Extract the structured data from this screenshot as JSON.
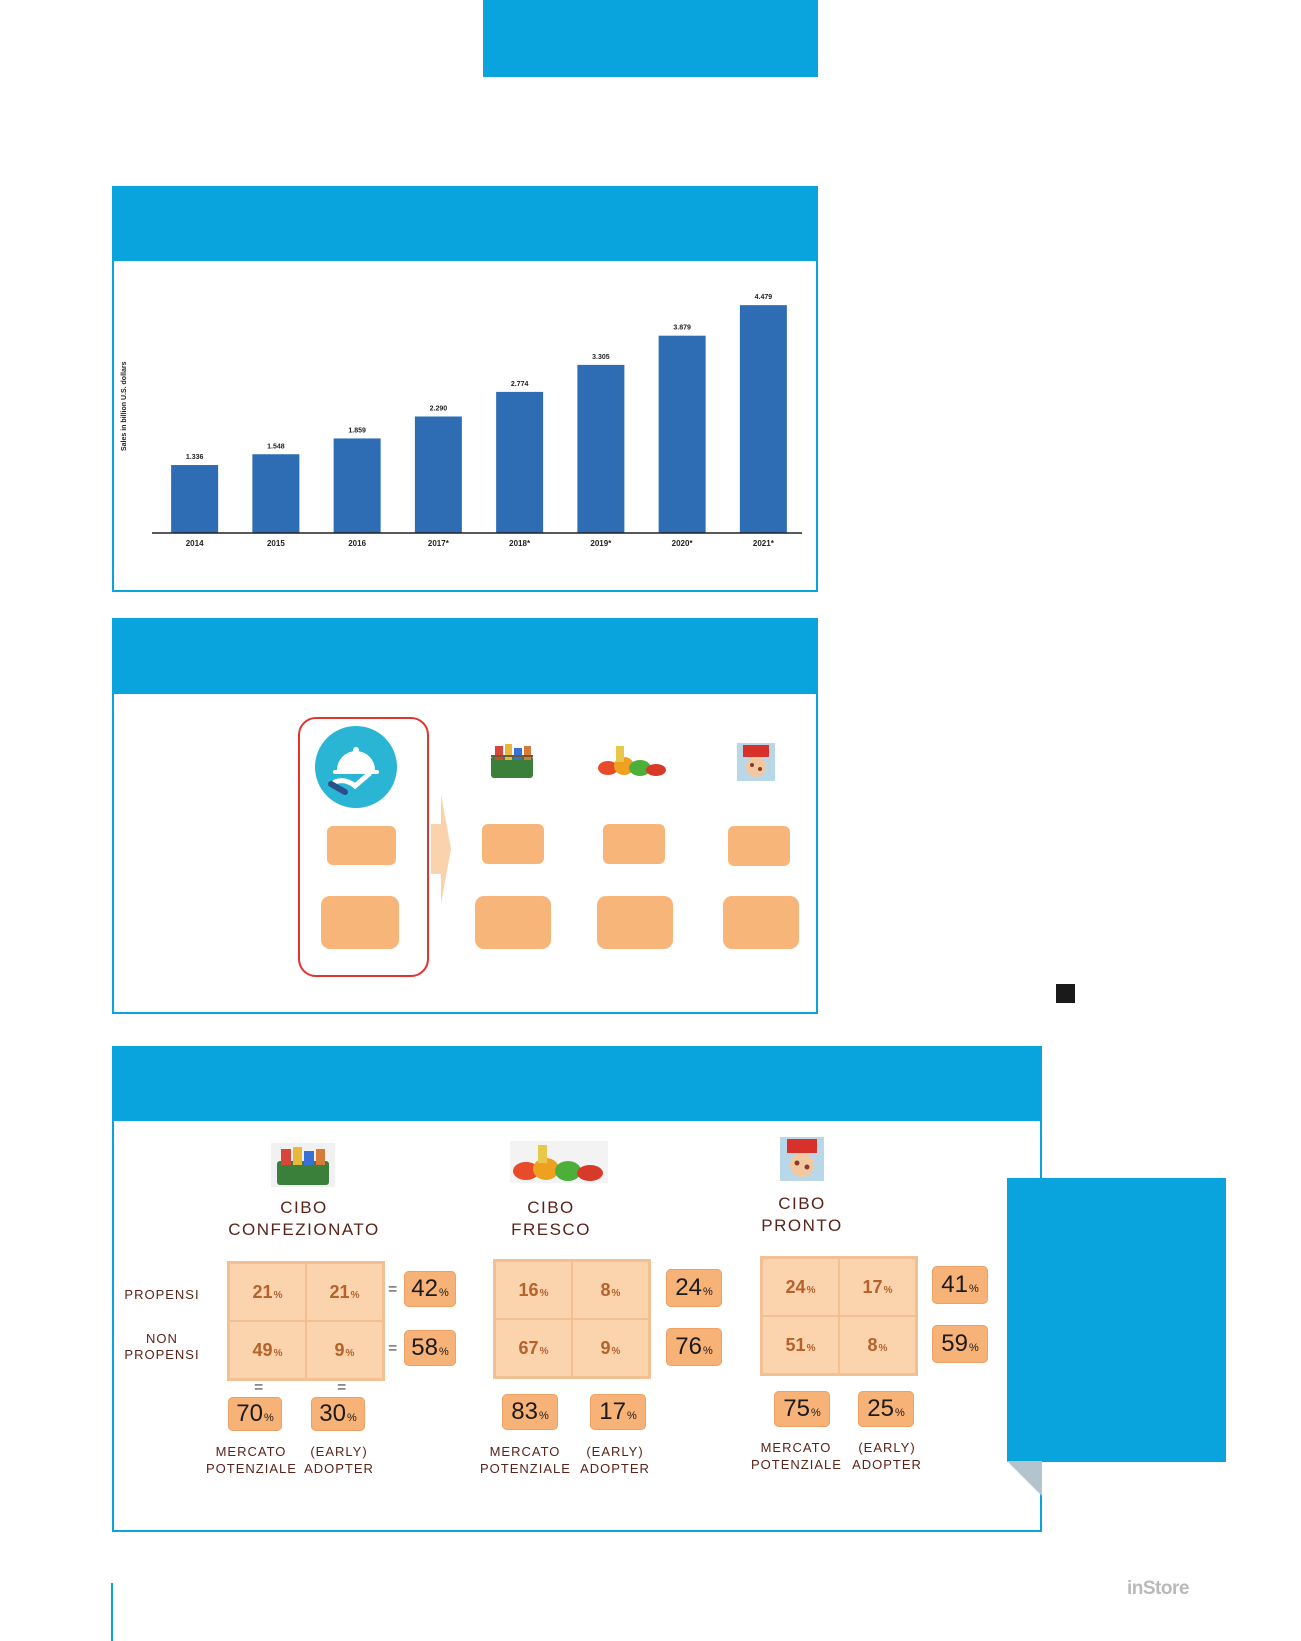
{
  "chart_data": {
    "type": "bar",
    "categories": [
      "2014",
      "2015",
      "2016",
      "2017*",
      "2018*",
      "2019*",
      "2020*",
      "2021*"
    ],
    "values": [
      1.336,
      1.548,
      1.859,
      2.29,
      2.774,
      3.305,
      3.879,
      4.479
    ],
    "value_labels": [
      "1.336",
      "1.548",
      "1.859",
      "2.290",
      "2.774",
      "3.305",
      "3.879",
      "4.479"
    ],
    "ylabel": "Sales in billion U.S. dollars",
    "ylim": [
      0,
      4.6
    ],
    "bar_color": "#2e6db4",
    "grid": false
  },
  "categories": [
    {
      "title_line1": "CIBO",
      "title_line2": "CONFEZIONATO",
      "icon": "grocery-basket-icon",
      "grid": [
        "21",
        "21",
        "49",
        "9"
      ],
      "row_totals": [
        "42",
        "58"
      ],
      "col_totals": [
        "70",
        "30"
      ],
      "foot1_line1": "MERCATO",
      "foot1_line2": "POTENZIALE",
      "foot2_line1": "(EARLY)",
      "foot2_line2": "ADOPTER"
    },
    {
      "title_line1": "CIBO",
      "title_line2": "FRESCO",
      "icon": "fresh-produce-icon",
      "grid": [
        "16",
        "8",
        "67",
        "9"
      ],
      "row_totals": [
        "24",
        "76"
      ],
      "col_totals": [
        "83",
        "17"
      ],
      "foot1_line1": "MERCATO",
      "foot1_line2": "POTENZIALE",
      "foot2_line1": "(EARLY)",
      "foot2_line2": "ADOPTER"
    },
    {
      "title_line1": "CIBO",
      "title_line2": "PRONTO",
      "icon": "ready-meal-icon",
      "grid": [
        "24",
        "17",
        "51",
        "8"
      ],
      "row_totals": [
        "41",
        "59"
      ],
      "col_totals": [
        "75",
        "25"
      ],
      "foot1_line1": "MERCATO",
      "foot1_line2": "POTENZIALE",
      "foot2_line1": "(EARLY)",
      "foot2_line2": "ADOPTER"
    }
  ],
  "row_labels": {
    "propensi": "PROPENSI",
    "non_line1": "NON",
    "non_line2": "PROPENSI"
  },
  "equals": "=",
  "brand": "inStore",
  "colors": {
    "header_blue": "#09a3de",
    "orange": "#f8b57a",
    "dark_brown": "#5a2318",
    "bar_blue": "#2e6db4"
  }
}
